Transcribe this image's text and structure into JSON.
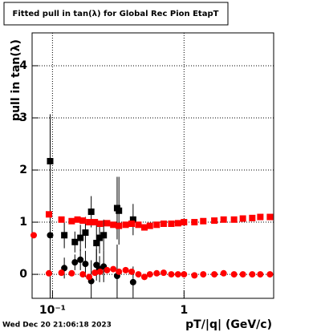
{
  "chart_data": {
    "type": "scatter",
    "title": "Fitted pull in tan(λ) for Global Rec Pion EtapT",
    "x_label": "pT/|q| (GeV/c)",
    "y_label": "pull in tan(λ)",
    "timestamp": "Wed Dec 20 21:06:18 2023",
    "log_x": true,
    "grid": true,
    "xlim": [
      0.07,
      4.8
    ],
    "ylim": [
      -0.46,
      4.63
    ],
    "xticks": [
      {
        "value": 0.1,
        "label": "10⁻¹"
      },
      1
    ],
    "yticks": [
      0,
      1,
      2,
      3,
      4
    ],
    "series": [
      {
        "name": "black-width",
        "color": "#000000",
        "marker": "square",
        "x": [
          0.096,
          0.123,
          0.148,
          0.163,
          0.178,
          0.197,
          0.216,
          0.228,
          0.245,
          0.31,
          0.32,
          0.41
        ],
        "values": [
          2.17,
          0.75,
          0.62,
          0.7,
          0.8,
          1.2,
          0.6,
          0.7,
          0.75,
          1.27,
          1.22,
          1.05
        ],
        "errors": [
          0.9,
          0.25,
          0.2,
          0.25,
          0.3,
          0.3,
          0.35,
          0.3,
          0.3,
          0.6,
          0.65,
          0.3
        ]
      },
      {
        "name": "black-mean",
        "color": "#000000",
        "marker": "circle",
        "x": [
          0.096,
          0.123,
          0.148,
          0.163,
          0.178,
          0.197,
          0.216,
          0.228,
          0.245,
          0.31,
          0.41
        ],
        "values": [
          0.75,
          0.12,
          0.23,
          0.28,
          0.2,
          -0.13,
          0.18,
          0.1,
          0.15,
          -0.03,
          -0.15
        ],
        "errors": [
          2.3,
          0.2,
          0.15,
          0.2,
          0.25,
          0.4,
          0.3,
          0.25,
          0.3,
          0.6,
          0.3
        ]
      },
      {
        "name": "red-width",
        "color": "#ff0000",
        "marker": "square",
        "x": [
          0.094,
          0.117,
          0.14,
          0.155,
          0.17,
          0.19,
          0.21,
          0.23,
          0.26,
          0.29,
          0.32,
          0.36,
          0.4,
          0.45,
          0.5,
          0.55,
          0.62,
          0.7,
          0.8,
          0.9,
          1.0,
          1.2,
          1.4,
          1.7,
          2.0,
          2.4,
          2.8,
          3.3,
          3.8,
          4.5
        ],
        "values": [
          1.15,
          1.05,
          1.02,
          1.05,
          1.03,
          1.0,
          1.0,
          0.97,
          0.98,
          0.95,
          0.93,
          0.95,
          0.97,
          0.95,
          0.9,
          0.93,
          0.95,
          0.97,
          0.97,
          0.98,
          1.0,
          1.0,
          1.02,
          1.03,
          1.05,
          1.05,
          1.07,
          1.08,
          1.1,
          1.1
        ]
      },
      {
        "name": "red-mean",
        "color": "#ff0000",
        "marker": "circle",
        "x": [
          0.072,
          0.094,
          0.117,
          0.14,
          0.17,
          0.19,
          0.21,
          0.23,
          0.26,
          0.29,
          0.32,
          0.36,
          0.4,
          0.45,
          0.5,
          0.55,
          0.62,
          0.7,
          0.8,
          0.9,
          1.0,
          1.2,
          1.4,
          1.7,
          2.0,
          2.4,
          2.8,
          3.3,
          3.8,
          4.5
        ],
        "values": [
          0.75,
          0.02,
          0.03,
          0.02,
          0.0,
          -0.05,
          0.03,
          0.05,
          0.08,
          0.1,
          0.05,
          0.08,
          0.05,
          0.0,
          -0.05,
          0.0,
          0.02,
          0.03,
          0.0,
          0.0,
          0.0,
          -0.02,
          0.0,
          0.0,
          0.02,
          0.0,
          0.0,
          0.0,
          0.0,
          0.0
        ]
      }
    ]
  }
}
